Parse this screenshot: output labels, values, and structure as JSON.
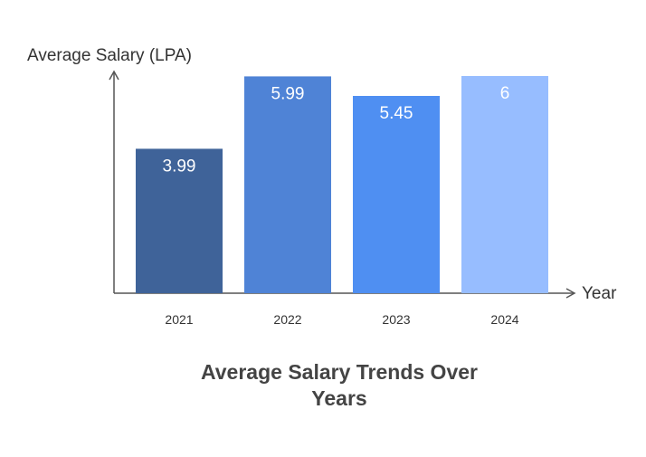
{
  "chart_data": {
    "type": "bar",
    "title_lines": [
      "Average Salary Trends Over",
      "Years"
    ],
    "xlabel": "Year",
    "ylabel": "Average Salary (LPA)",
    "categories": [
      "2021",
      "2022",
      "2023",
      "2024"
    ],
    "values": [
      3.99,
      5.99,
      5.45,
      6
    ],
    "value_labels": [
      "3.99",
      "5.99",
      "5.45",
      "6"
    ],
    "colors": [
      "#3f6399",
      "#4f83d6",
      "#4f8ff2",
      "#97bdff"
    ],
    "ylim": [
      0,
      6
    ],
    "grid": false,
    "legend": "none"
  }
}
